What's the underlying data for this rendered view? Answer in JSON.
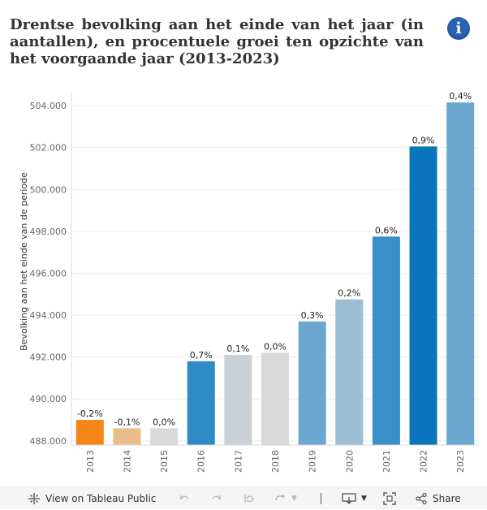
{
  "header": {
    "title": "Drentse bevolking aan het einde van het jaar (in aantallen), en procentuele groei ten opzichte van het voorgaande jaar (2013-2023)",
    "info_icon": "info-icon"
  },
  "chart_data": {
    "type": "bar",
    "title": "Drentse bevolking aan het einde van het jaar (in aantallen), en procentuele groei ten opzichte van het voorgaande jaar (2013-2023)",
    "xlabel": "",
    "ylabel": "Bevolking aan het einde van de periode",
    "ylim": [
      487800,
      504700
    ],
    "yticks": [
      488000,
      490000,
      492000,
      494000,
      496000,
      498000,
      500000,
      502000,
      504000
    ],
    "ytick_labels": [
      "488.000",
      "490.000",
      "492.000",
      "494.000",
      "496.000",
      "498.000",
      "500.000",
      "502.000",
      "504.000"
    ],
    "categories": [
      "2013",
      "2014",
      "2015",
      "2016",
      "2017",
      "2018",
      "2019",
      "2020",
      "2021",
      "2022",
      "2023"
    ],
    "values": [
      489000,
      488600,
      488600,
      491800,
      492100,
      492200,
      493700,
      494750,
      497750,
      502050,
      504150
    ],
    "growth_labels": [
      "-0,2%",
      "-0,1%",
      "0,0%",
      "0,7%",
      "0,1%",
      "0,0%",
      "0,3%",
      "0,2%",
      "0,6%",
      "0,9%",
      "0,4%"
    ],
    "colors": [
      "#f58518",
      "#e8bd8a",
      "#d9d9d9",
      "#2f8ac6",
      "#c9d0d6",
      "#d9d9d9",
      "#6aa6cd",
      "#9dbdd3",
      "#3a8fc8",
      "#0a75bc",
      "#6aa6cd"
    ],
    "grid": true,
    "legend": "none"
  },
  "toolbar": {
    "view_label": "View on Tableau Public",
    "share_label": "Share",
    "icons": [
      "tableau-icon",
      "undo-icon",
      "redo-icon",
      "revert-icon",
      "refresh-icon",
      "download-icon",
      "fullscreen-icon",
      "share-icon"
    ]
  }
}
